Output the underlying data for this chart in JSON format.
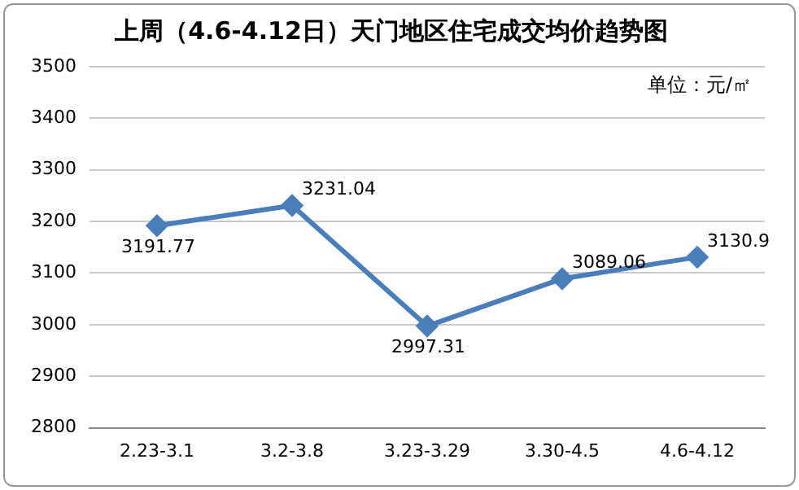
{
  "chart_data": {
    "type": "line",
    "title": "上周（4.6-4.12日）天门地区住宅成交均价趋势图",
    "categories": [
      "2.23-3.1",
      "3.2-3.8",
      "3.23-3.29",
      "3.30-4.5",
      "4.6-4.12"
    ],
    "series": [
      {
        "color": "#4a7ebb",
        "values": [
          3191.77,
          3231.04,
          2997.31,
          3089.06,
          3130.9
        ]
      }
    ],
    "ylim": [
      2800,
      3500
    ],
    "yticks": [
      2800,
      2900,
      3000,
      3100,
      3200,
      3300,
      3400,
      3500
    ],
    "grid": "y",
    "legend": false,
    "marker": "diamond",
    "line_style": "solid",
    "data_labels": true,
    "annotations": [
      "单位：元/㎡"
    ]
  }
}
